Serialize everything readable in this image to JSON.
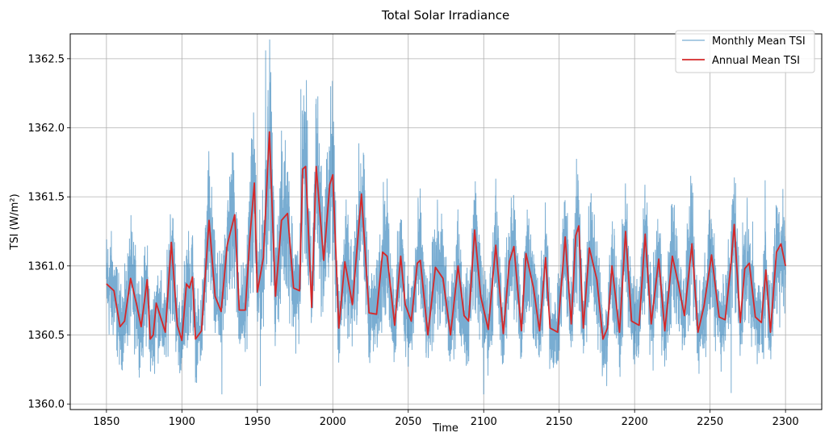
{
  "chart_data": {
    "type": "line",
    "title": "Total Solar Irradiance",
    "xlabel": "Time",
    "ylabel": "TSI (W/m²)",
    "xlim": [
      1826,
      2324
    ],
    "ylim": [
      1359.96,
      1362.68
    ],
    "x_ticks": [
      1850,
      1900,
      1950,
      2000,
      2050,
      2100,
      2150,
      2200,
      2250,
      2300
    ],
    "y_ticks": [
      1360.0,
      1360.5,
      1361.0,
      1361.5,
      1362.0,
      1362.5
    ],
    "x_tick_labels": [
      "1850",
      "1900",
      "1950",
      "2000",
      "2050",
      "2100",
      "2150",
      "2200",
      "2250",
      "2300"
    ],
    "y_tick_labels": [
      "1360.0",
      "1360.5",
      "1361.0",
      "1361.5",
      "1362.0",
      "1362.5"
    ],
    "grid": true,
    "legend_position": "top-right",
    "series": [
      {
        "name": "Monthly Mean TSI",
        "color": "#1f77b4",
        "style": "thin translucent line",
        "x_range": [
          1850,
          2300
        ],
        "noise_amplitude": 0.28,
        "spikes": [
          {
            "x": 1926.5,
            "y": 1360.07
          },
          {
            "x": 1955.5,
            "y": 1362.56
          },
          {
            "x": 1952.0,
            "y": 1360.13
          },
          {
            "x": 1978.8,
            "y": 1362.28
          },
          {
            "x": 1989.0,
            "y": 1362.21
          },
          {
            "x": 2100.0,
            "y": 1360.07
          },
          {
            "x": 2181.5,
            "y": 1360.13
          },
          {
            "x": 2264.0,
            "y": 1360.08
          },
          {
            "x": 2286.5,
            "y": 1361.62
          }
        ]
      },
      {
        "name": "Annual Mean TSI",
        "color": "#d62728",
        "style": "solid line",
        "x": [
          1850,
          1855,
          1859,
          1862,
          1866,
          1870,
          1873,
          1877,
          1879,
          1881,
          1883,
          1885,
          1889,
          1893,
          1897,
          1900,
          1903,
          1905,
          1907,
          1909,
          1913,
          1918,
          1922,
          1926,
          1930,
          1935,
          1938,
          1942,
          1945,
          1948,
          1950,
          1954,
          1958,
          1962,
          1966,
          1970,
          1974,
          1978,
          1980,
          1982,
          1986,
          1989,
          1994,
          1998,
          2000,
          2004,
          2008,
          2013,
          2019,
          2024,
          2029,
          2033,
          2036,
          2041,
          2045,
          2048,
          2052,
          2056,
          2058,
          2063,
          2068,
          2073,
          2078,
          2083,
          2087,
          2090,
          2094,
          2098,
          2103,
          2108,
          2113,
          2117,
          2120,
          2125,
          2128,
          2133,
          2137,
          2141,
          2144,
          2149,
          2154,
          2158,
          2161,
          2163,
          2166,
          2170,
          2175,
          2179,
          2182,
          2185,
          2190,
          2194,
          2198,
          2203,
          2207,
          2211,
          2216,
          2220,
          2225,
          2229,
          2233,
          2238,
          2242,
          2246,
          2251,
          2256,
          2260,
          2264,
          2266,
          2270,
          2273,
          2276,
          2280,
          2284,
          2287,
          2290,
          2294,
          2297,
          2300
        ],
        "y": [
          1360.87,
          1360.82,
          1360.56,
          1360.6,
          1360.91,
          1360.72,
          1360.56,
          1360.9,
          1360.47,
          1360.5,
          1360.73,
          1360.66,
          1360.52,
          1361.17,
          1360.57,
          1360.46,
          1360.87,
          1360.84,
          1360.92,
          1360.47,
          1360.53,
          1361.33,
          1360.78,
          1360.67,
          1361.15,
          1361.37,
          1360.68,
          1360.68,
          1361.2,
          1361.6,
          1360.81,
          1361.06,
          1361.97,
          1360.78,
          1361.33,
          1361.38,
          1360.84,
          1360.82,
          1361.7,
          1361.72,
          1360.7,
          1361.72,
          1361.04,
          1361.59,
          1361.66,
          1360.55,
          1361.03,
          1360.72,
          1361.52,
          1360.66,
          1360.65,
          1361.1,
          1361.07,
          1360.57,
          1361.07,
          1360.72,
          1360.6,
          1361.02,
          1361.04,
          1360.5,
          1360.99,
          1360.91,
          1360.5,
          1361.0,
          1360.64,
          1360.6,
          1361.26,
          1360.78,
          1360.54,
          1361.15,
          1360.51,
          1361.03,
          1361.14,
          1360.53,
          1361.09,
          1360.84,
          1360.53,
          1361.06,
          1360.55,
          1360.52,
          1361.21,
          1360.58,
          1361.22,
          1361.29,
          1360.55,
          1361.13,
          1360.9,
          1360.47,
          1360.55,
          1361.0,
          1360.52,
          1361.25,
          1360.6,
          1360.57,
          1361.23,
          1360.58,
          1361.05,
          1360.53,
          1361.07,
          1360.87,
          1360.64,
          1361.16,
          1360.52,
          1360.71,
          1361.08,
          1360.63,
          1360.61,
          1361.03,
          1361.3,
          1360.59,
          1360.98,
          1361.02,
          1360.63,
          1360.59,
          1360.97,
          1360.52,
          1361.1,
          1361.16,
          1361.0
        ]
      }
    ]
  }
}
